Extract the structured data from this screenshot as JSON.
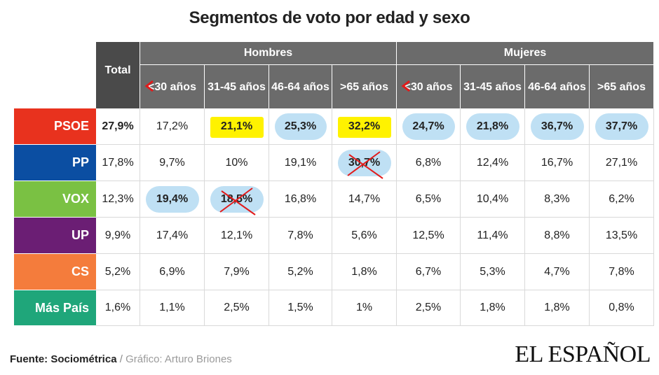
{
  "title": "Segmentos de voto por edad y sexo",
  "chart_data": {
    "type": "table",
    "title": "Segmentos de voto por edad y sexo",
    "total_header": "Total",
    "groups": [
      "Hombres",
      "Mujeres"
    ],
    "age_labels": [
      "<30 años",
      "31-45 años",
      "46-64 años",
      ">65 años",
      "<30 años",
      "31-45 años",
      "46-64 años",
      ">65 años"
    ],
    "rows": [
      {
        "party": "PSOE",
        "color": "#e8321e",
        "total": "27,9%",
        "total_bold": true,
        "values": [
          "17,2%",
          "21,1%",
          "25,3%",
          "32,2%",
          "24,7%",
          "21,8%",
          "36,7%",
          "37,7%"
        ],
        "highlight": [
          "",
          "yellow",
          "blue",
          "yellow",
          "blue",
          "blue",
          "blue",
          "blue"
        ],
        "crossed": [
          false,
          false,
          false,
          false,
          false,
          false,
          false,
          false
        ]
      },
      {
        "party": "PP",
        "color": "#0b4ea2",
        "total": "17,8%",
        "total_bold": false,
        "values": [
          "9,7%",
          "10%",
          "19,1%",
          "30,7%",
          "6,8%",
          "12,4%",
          "16,7%",
          "27,1%"
        ],
        "highlight": [
          "",
          "",
          "",
          "blue",
          "",
          "",
          "",
          ""
        ],
        "crossed": [
          false,
          false,
          false,
          true,
          false,
          false,
          false,
          false
        ]
      },
      {
        "party": "VOX",
        "color": "#7ac143",
        "total": "12,3%",
        "total_bold": false,
        "values": [
          "19,4%",
          "18,5%",
          "16,8%",
          "14,7%",
          "6,5%",
          "10,4%",
          "8,3%",
          "6,2%"
        ],
        "highlight": [
          "blue",
          "blue",
          "",
          "",
          "",
          "",
          "",
          ""
        ],
        "crossed": [
          false,
          true,
          false,
          false,
          false,
          false,
          false,
          false
        ]
      },
      {
        "party": "UP",
        "color": "#6b1e74",
        "total": "9,9%",
        "total_bold": false,
        "values": [
          "17,4%",
          "12,1%",
          "7,8%",
          "5,6%",
          "12,5%",
          "11,4%",
          "8,8%",
          "13,5%"
        ],
        "highlight": [
          "",
          "",
          "",
          "",
          "",
          "",
          "",
          ""
        ],
        "crossed": [
          false,
          false,
          false,
          false,
          false,
          false,
          false,
          false
        ]
      },
      {
        "party": "CS",
        "color": "#f47c3c",
        "total": "5,2%",
        "total_bold": false,
        "values": [
          "6,9%",
          "7,9%",
          "5,2%",
          "1,8%",
          "6,7%",
          "5,3%",
          "4,7%",
          "7,8%"
        ],
        "highlight": [
          "",
          "",
          "",
          "",
          "",
          "",
          "",
          ""
        ],
        "crossed": [
          false,
          false,
          false,
          false,
          false,
          false,
          false,
          false
        ]
      },
      {
        "party": "Más País",
        "color": "#1fa67a",
        "total": "1,6%",
        "total_bold": false,
        "values": [
          "1,1%",
          "2,5%",
          "1,5%",
          "1%",
          "2,5%",
          "1,8%",
          "1,8%",
          "0,8%"
        ],
        "highlight": [
          "",
          "",
          "",
          "",
          "",
          "",
          "",
          ""
        ],
        "crossed": [
          false,
          false,
          false,
          false,
          false,
          false,
          false,
          false
        ]
      }
    ],
    "colors": {
      "header": "#6b6b6b",
      "total_header": "#4a4a4a",
      "highlight_blue": "#bfe0f4",
      "highlight_yellow": "#fff200",
      "annotation": "#e21a1a"
    }
  },
  "footer": {
    "source": "Fuente: Sociométrica",
    "separator": " / ",
    "credit": "Gráfico: Arturo Briones"
  },
  "logo": "EL ESPAÑOL"
}
